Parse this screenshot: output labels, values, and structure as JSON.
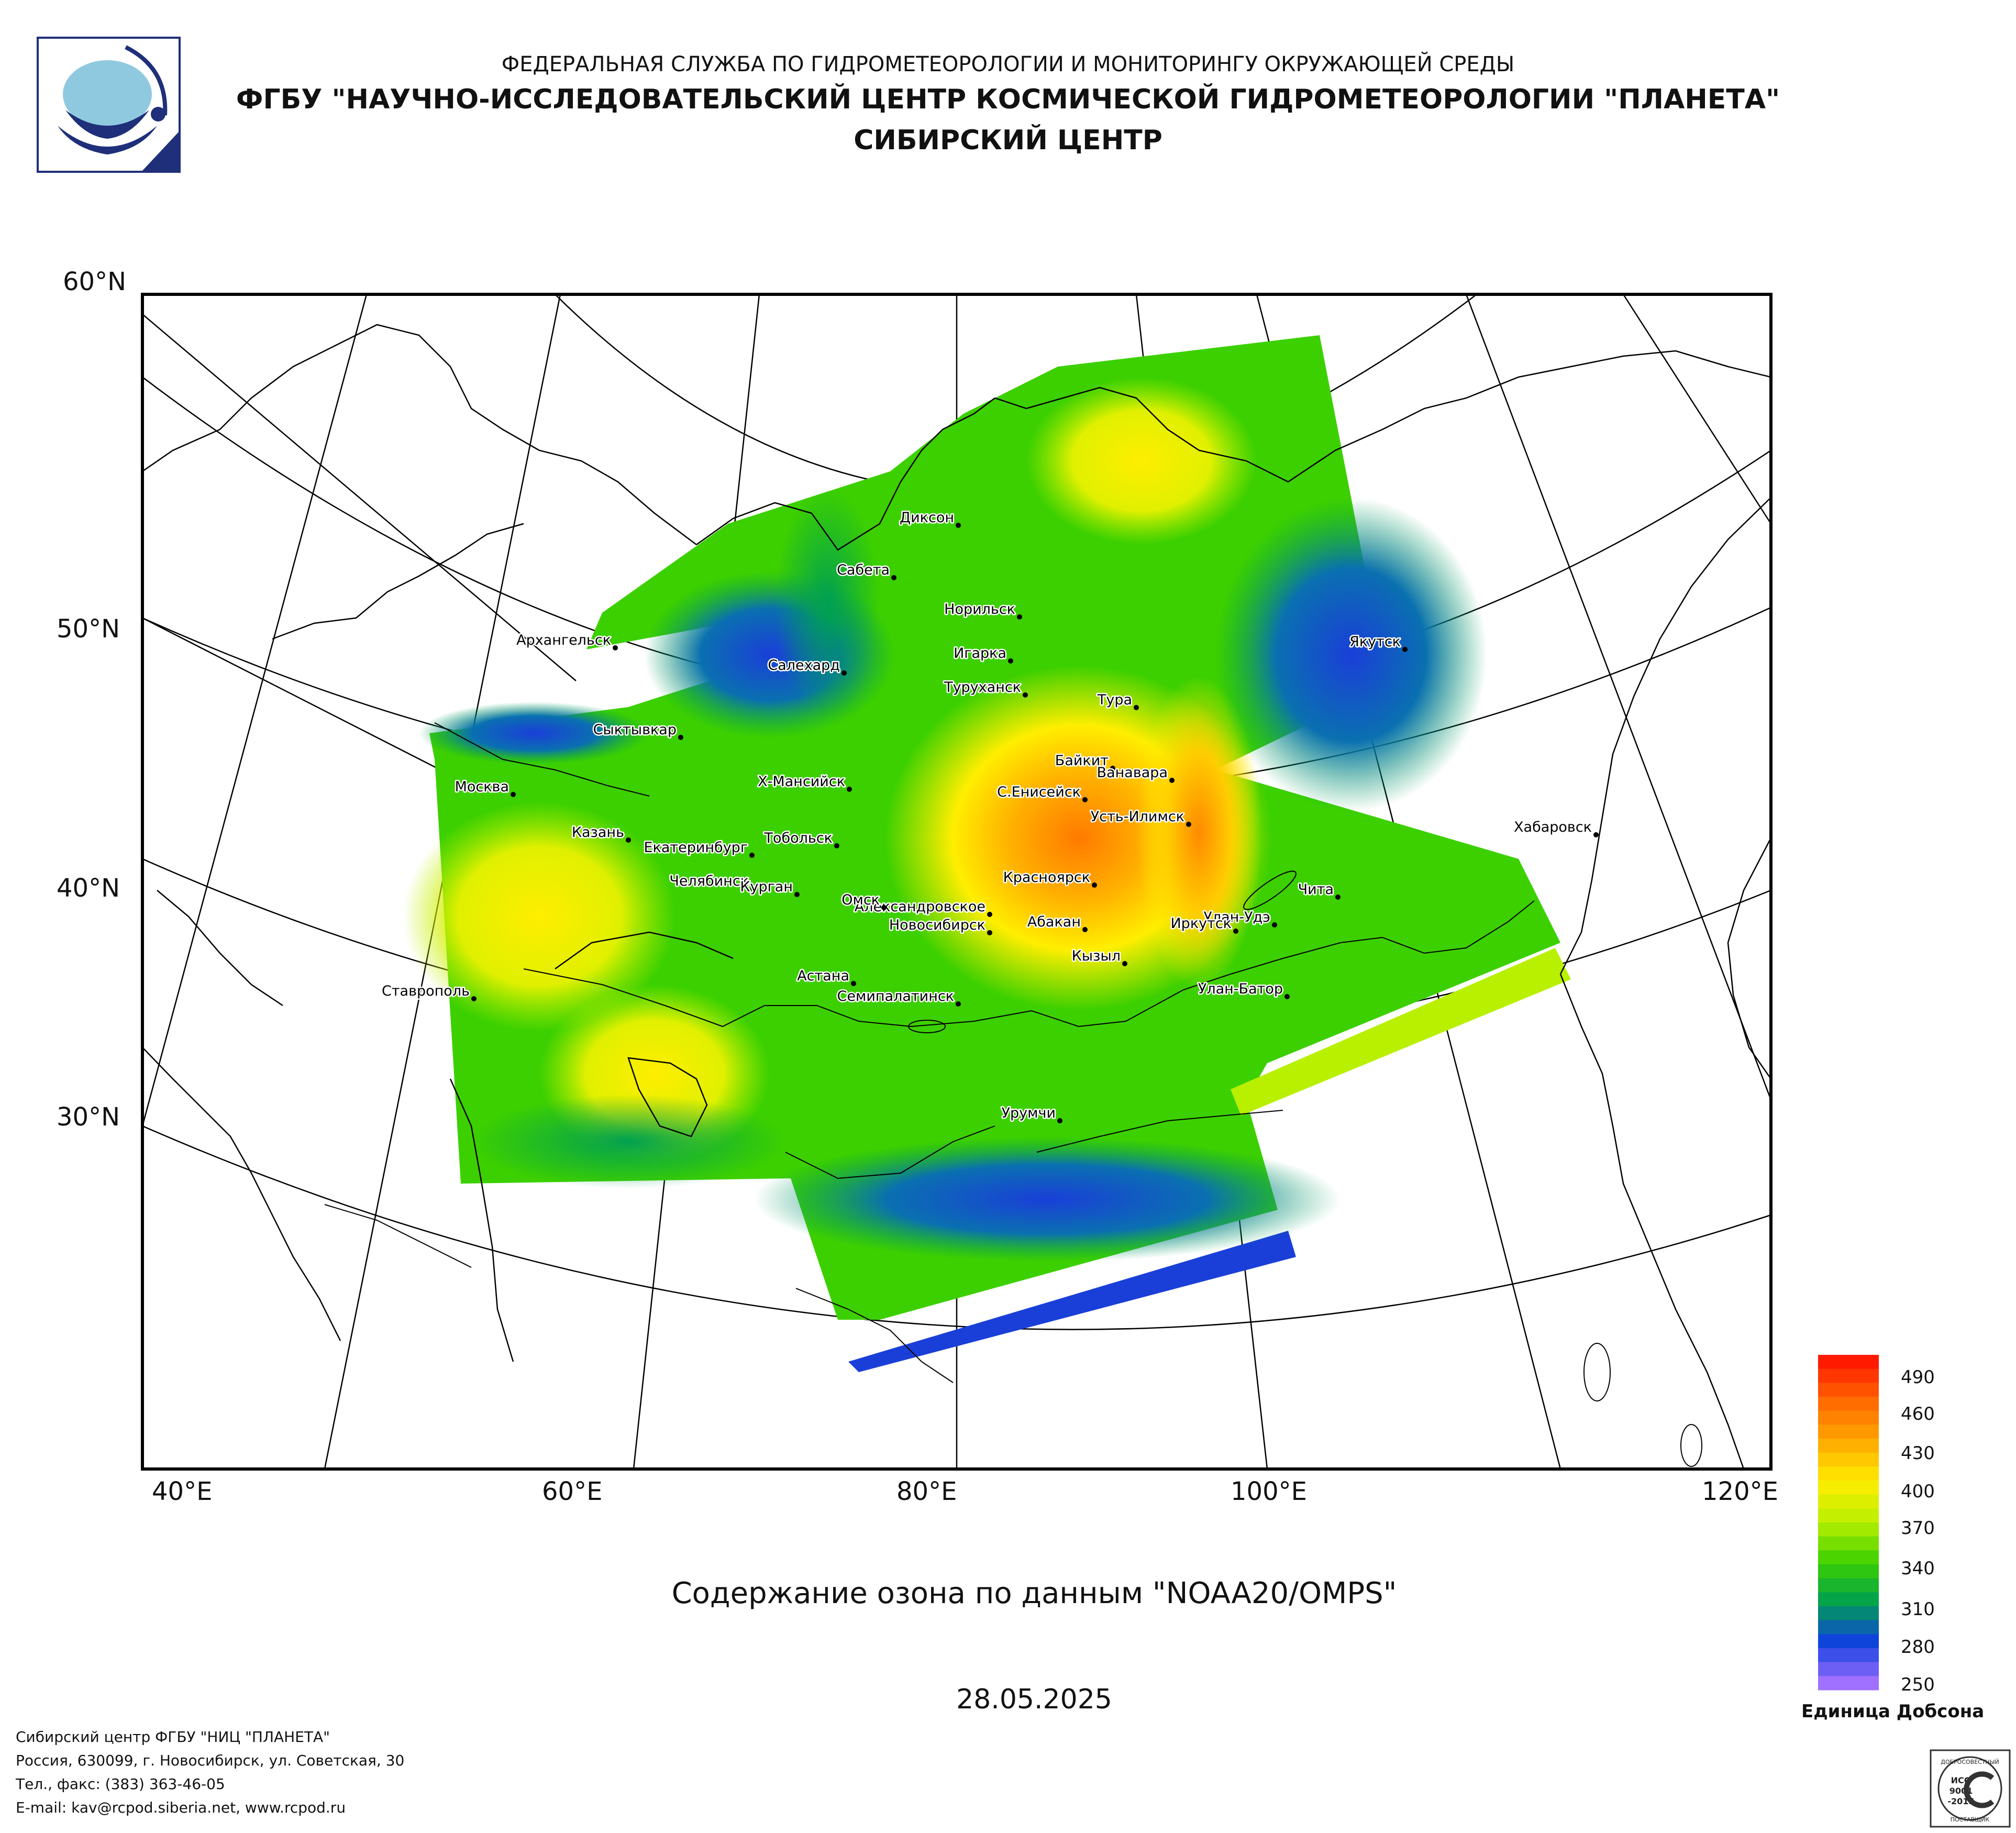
{
  "header": {
    "line1": "ФЕДЕРАЛЬНАЯ СЛУЖБА ПО ГИДРОМЕТЕОРОЛОГИИ И МОНИТОРИНГУ ОКРУЖАЮЩЕЙ СРЕДЫ",
    "line2": "ФГБУ \"НАУЧНО-ИССЛЕДОВАТЕЛЬСКИЙ ЦЕНТР КОСМИЧЕСКОЙ ГИДРОМЕТЕОРОЛОГИИ \"ПЛАНЕТА\"",
    "line3": "СИБИРСКИЙ ЦЕНТР"
  },
  "map": {
    "lat_labels": [
      "60°N",
      "50°N",
      "40°N",
      "30°N"
    ],
    "lon_labels": [
      "40°E",
      "60°E",
      "80°E",
      "100°E",
      "120°E"
    ],
    "cities": [
      {
        "name": "Диксон"
      },
      {
        "name": "Сабета"
      },
      {
        "name": "Норильск"
      },
      {
        "name": "Игарка"
      },
      {
        "name": "Салехард"
      },
      {
        "name": "Архангельск"
      },
      {
        "name": "Туруханск"
      },
      {
        "name": "Тура"
      },
      {
        "name": "Якутск"
      },
      {
        "name": "Сыктывкар"
      },
      {
        "name": "Байкит"
      },
      {
        "name": "Ванавара"
      },
      {
        "name": "С.Енисейск"
      },
      {
        "name": "Х-Мансийск"
      },
      {
        "name": "Москва"
      },
      {
        "name": "Усть-Илимск"
      },
      {
        "name": "Хабаровск"
      },
      {
        "name": "Казань"
      },
      {
        "name": "Тобольск"
      },
      {
        "name": "Екатеринбург"
      },
      {
        "name": "Красноярск"
      },
      {
        "name": "Челябинск"
      },
      {
        "name": "Александровское"
      },
      {
        "name": "Чита"
      },
      {
        "name": "Курган"
      },
      {
        "name": "Омск"
      },
      {
        "name": "Улан-Удэ"
      },
      {
        "name": "Новосибирск"
      },
      {
        "name": "Абакан"
      },
      {
        "name": "Иркутск"
      },
      {
        "name": "Кызыл"
      },
      {
        "name": "Астана"
      },
      {
        "name": "Ставрополь"
      },
      {
        "name": "Улан-Батор"
      },
      {
        "name": "Семипалатинск"
      },
      {
        "name": "Урумчи"
      }
    ]
  },
  "caption": "Содержание озона по данным \"NOAA20/OMPS\"",
  "date": "28.05.2025",
  "legend": {
    "labels": [
      "490",
      "460",
      "430",
      "400",
      "370",
      "340",
      "310",
      "280",
      "250"
    ],
    "unit": "Единица Добсона",
    "colors": [
      "#ff1a00",
      "#ff6a00",
      "#ffaa00",
      "#ffee00",
      "#b8f000",
      "#3cd000",
      "#00a050",
      "#1040e0",
      "#a070ff"
    ]
  },
  "footer": {
    "line1": "Сибирский центр ФГБУ \"НИЦ \"ПЛАНЕТА\"",
    "line2": "Россия, 630099, г. Новосибирск, ул. Советская, 30",
    "line3": "Тел., факс: (383) 363-46-05",
    "line4": "E-mail: kav@rcpod.siberia.net, www.rcpod.ru"
  },
  "iso_badge": {
    "text_top": "ДОБРОСОВЕСТНЫЙ",
    "text_mid1": "ИСО",
    "text_mid2": "9001",
    "text_mid3": "-2015",
    "text_bottom": "ПОСТАВЩИК"
  }
}
